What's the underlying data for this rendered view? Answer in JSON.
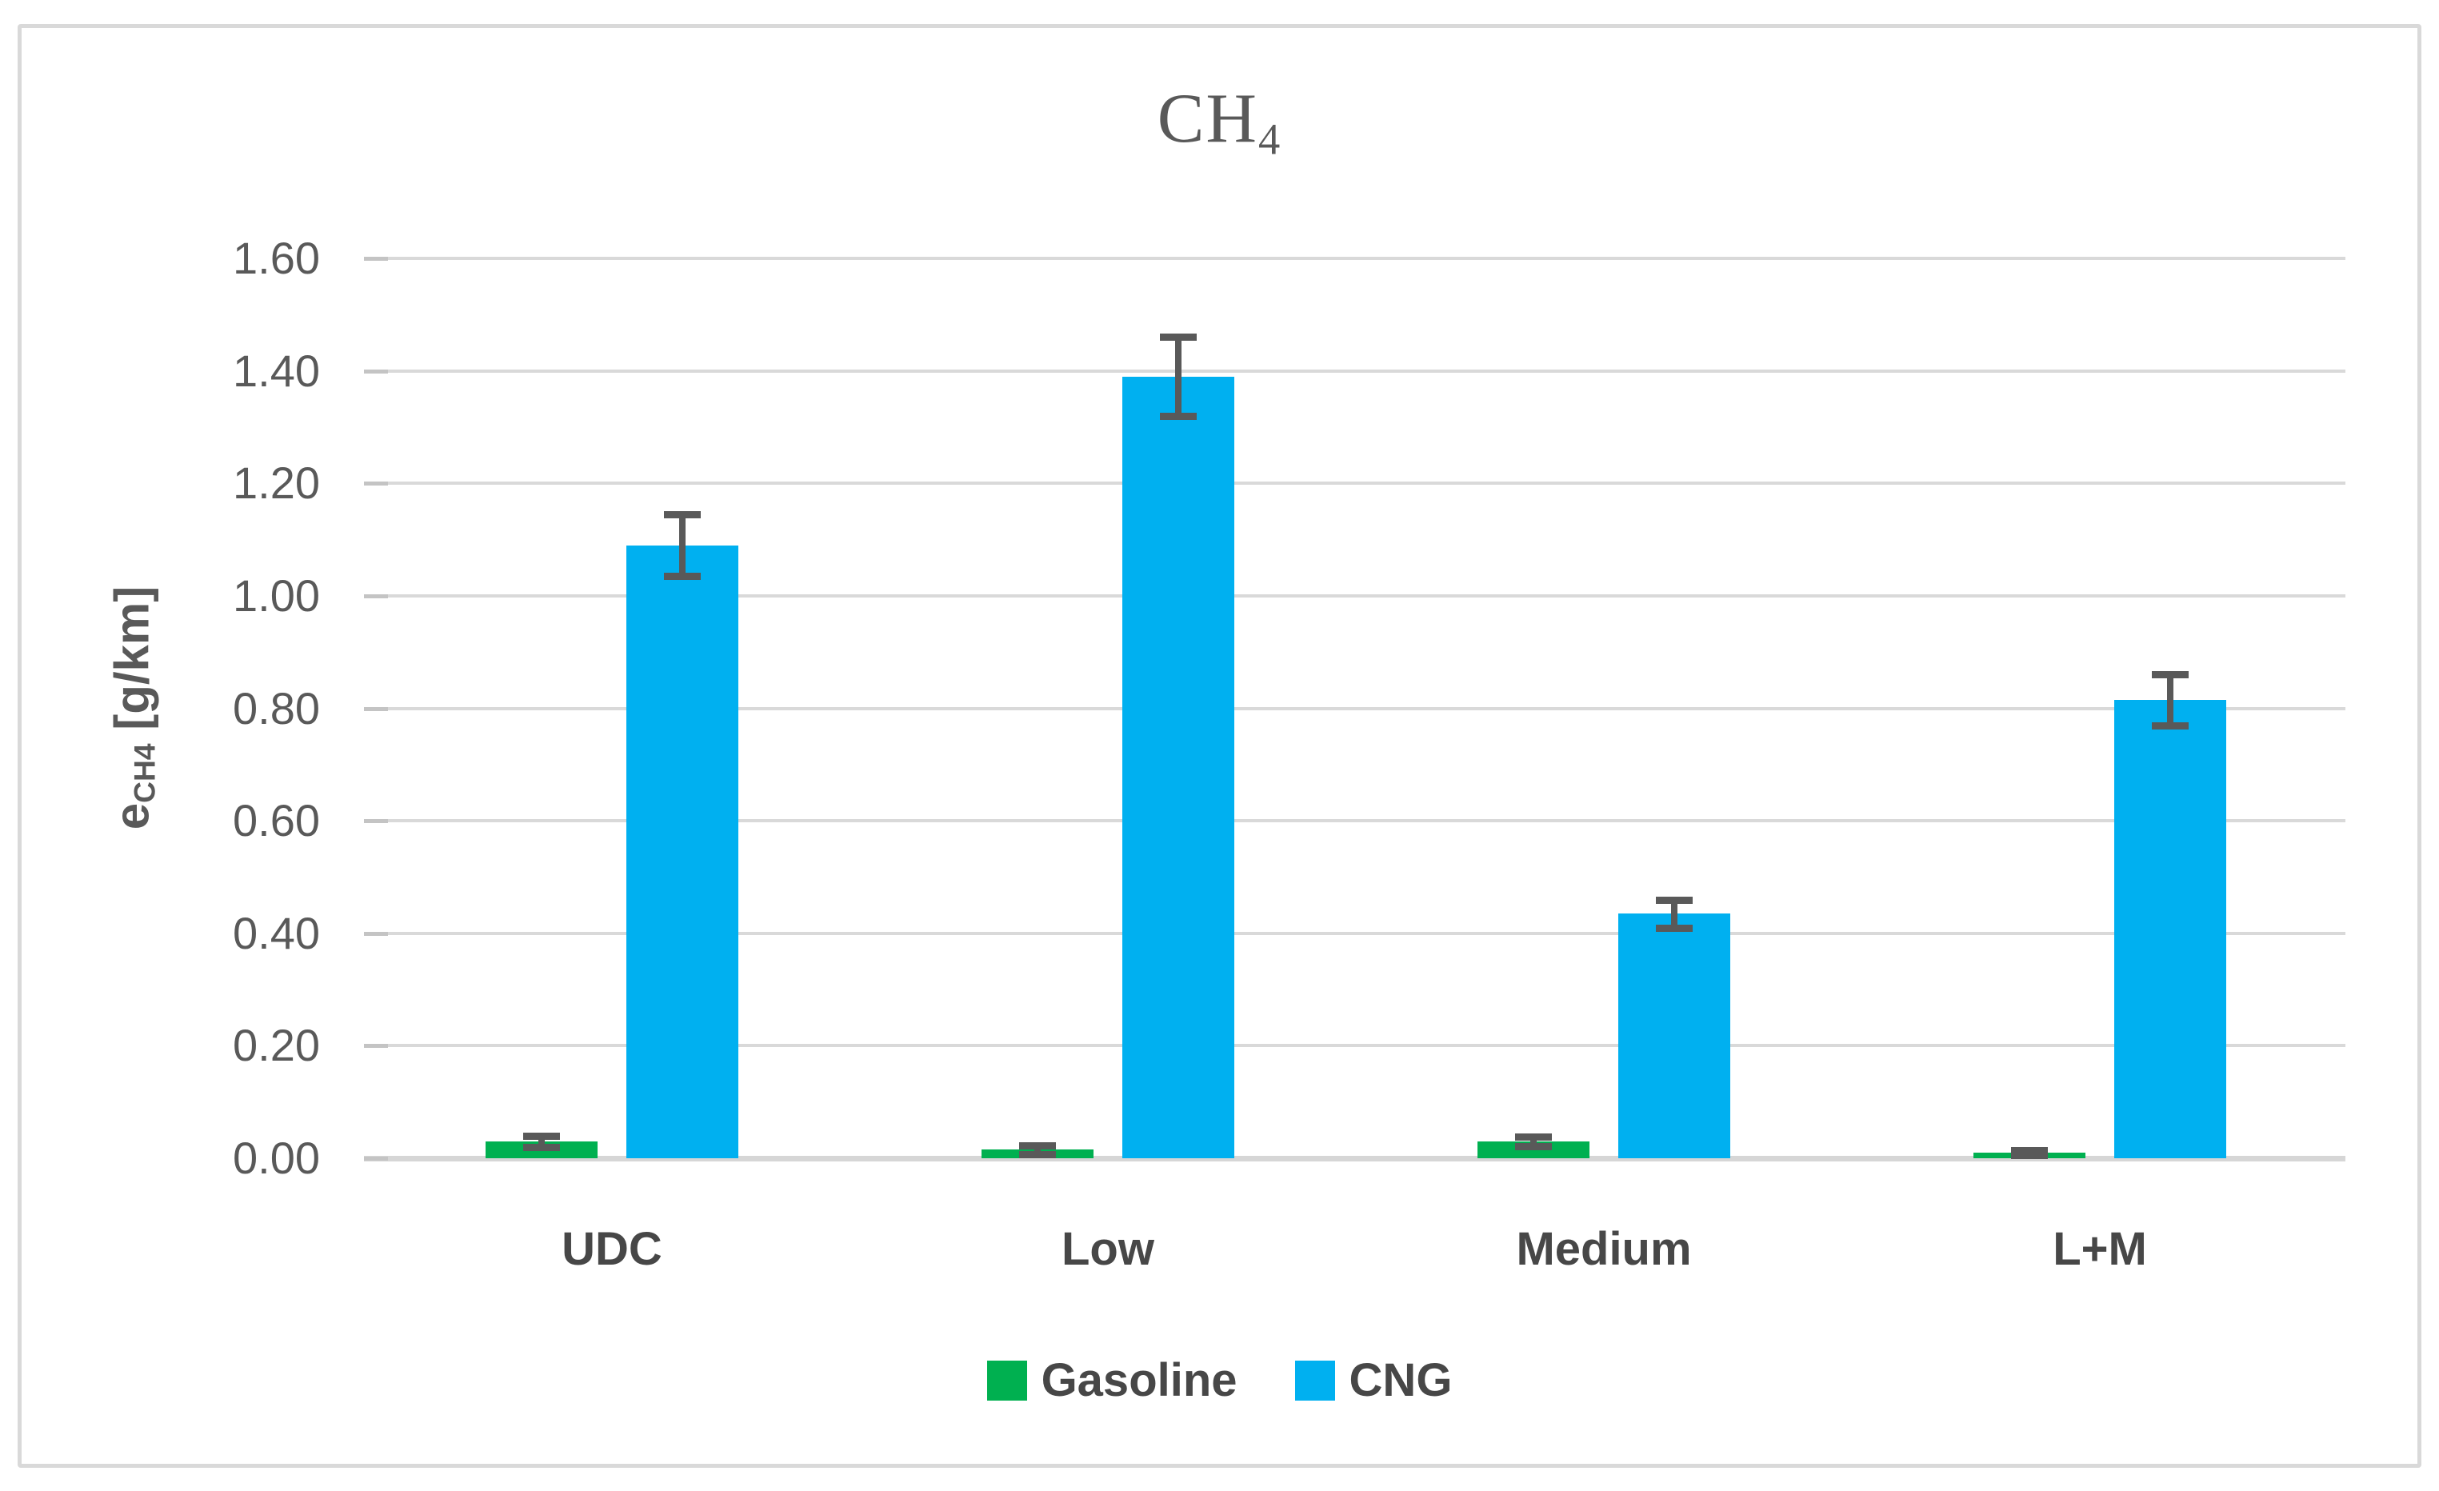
{
  "title": {
    "text": "CH",
    "subscript": "4"
  },
  "chart_data": {
    "type": "bar",
    "title": "CH4",
    "categories": [
      "UDC",
      "Low",
      "Medium",
      "L+M"
    ],
    "series": [
      {
        "name": "Gasoline",
        "color": "#00B050",
        "values": [
          0.03,
          0.015,
          0.03,
          0.01
        ],
        "errors": [
          0.01,
          0.008,
          0.008,
          0.004
        ]
      },
      {
        "name": "CNG",
        "color": "#00B0F0",
        "values": [
          1.09,
          1.39,
          0.435,
          0.815
        ],
        "errors": [
          0.055,
          0.07,
          0.025,
          0.045
        ]
      }
    ],
    "ylabel": {
      "prefix": "e",
      "subscript": "CH4",
      "suffix": " [g/km]"
    },
    "ylim": [
      0,
      1.6
    ],
    "yticks": [
      {
        "label": "0.00",
        "value": 0.0
      },
      {
        "label": "0.20",
        "value": 0.2
      },
      {
        "label": "0.40",
        "value": 0.4
      },
      {
        "label": "0.60",
        "value": 0.6
      },
      {
        "label": "0.80",
        "value": 0.8
      },
      {
        "label": "1.00",
        "value": 1.0
      },
      {
        "label": "1.20",
        "value": 1.2
      },
      {
        "label": "1.40",
        "value": 1.4
      },
      {
        "label": "1.60",
        "value": 1.6
      }
    ],
    "grid": true,
    "legend_position": "bottom",
    "colors": {
      "gasoline": "#00B050",
      "cng": "#00B0F0",
      "error_bar": "#595959",
      "gridline": "#D9D9D9",
      "axis_text": "#595959",
      "category_text": "#474747",
      "frame_border": "#D9D9D9"
    }
  }
}
